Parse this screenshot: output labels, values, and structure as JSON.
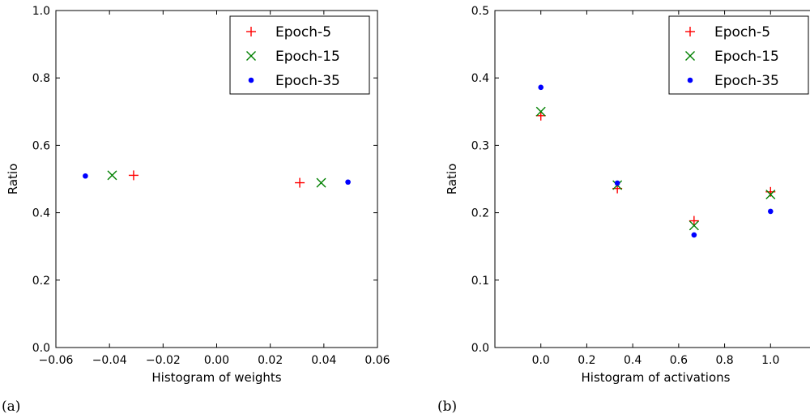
{
  "chart_data": [
    {
      "type": "scatter",
      "caption": "(a)",
      "xlabel": "Histogram of weights",
      "ylabel": "Ratio",
      "xlim": [
        -0.06,
        0.06
      ],
      "ylim": [
        0.0,
        1.0
      ],
      "xticks": [
        -0.06,
        -0.04,
        -0.02,
        0.0,
        0.02,
        0.04,
        0.06
      ],
      "xtick_labels": [
        "−0.06",
        "−0.04",
        "−0.02",
        "0.00",
        "0.02",
        "0.04",
        "0.06"
      ],
      "yticks": [
        0.0,
        0.2,
        0.4,
        0.6,
        0.8,
        1.0
      ],
      "ytick_labels": [
        "0.0",
        "0.2",
        "0.4",
        "0.6",
        "0.8",
        "1.0"
      ],
      "legend_position": "top-right",
      "series": [
        {
          "name": "Epoch-5",
          "marker": "plus",
          "color": "#ff0000",
          "points": [
            {
              "x": -0.031,
              "y": 0.511
            },
            {
              "x": 0.031,
              "y": 0.489
            }
          ]
        },
        {
          "name": "Epoch-15",
          "marker": "x",
          "color": "#008000",
          "points": [
            {
              "x": -0.039,
              "y": 0.511
            },
            {
              "x": 0.039,
              "y": 0.489
            }
          ]
        },
        {
          "name": "Epoch-35",
          "marker": "dot",
          "color": "#0000ff",
          "points": [
            {
              "x": -0.049,
              "y": 0.509
            },
            {
              "x": 0.049,
              "y": 0.491
            }
          ]
        }
      ]
    },
    {
      "type": "scatter",
      "caption": "(b)",
      "xlabel": "Histogram of activations",
      "ylabel": "Ratio",
      "xlim": [
        -0.2,
        1.2
      ],
      "ylim": [
        0.0,
        0.5
      ],
      "xticks": [
        0.0,
        0.2,
        0.4,
        0.6,
        0.8,
        1.0
      ],
      "xtick_labels": [
        "0.0",
        "0.2",
        "0.4",
        "0.6",
        "0.8",
        "1.0"
      ],
      "yticks": [
        0.0,
        0.1,
        0.2,
        0.3,
        0.4,
        0.5
      ],
      "ytick_labels": [
        "0.0",
        "0.1",
        "0.2",
        "0.3",
        "0.4",
        "0.5"
      ],
      "legend_position": "top-right",
      "series": [
        {
          "name": "Epoch-5",
          "marker": "plus",
          "color": "#ff0000",
          "points": [
            {
              "x": 0.0,
              "y": 0.344
            },
            {
              "x": 0.333,
              "y": 0.236
            },
            {
              "x": 0.667,
              "y": 0.188
            },
            {
              "x": 1.0,
              "y": 0.231
            }
          ]
        },
        {
          "name": "Epoch-15",
          "marker": "x",
          "color": "#008000",
          "points": [
            {
              "x": 0.0,
              "y": 0.35
            },
            {
              "x": 0.333,
              "y": 0.241
            },
            {
              "x": 0.667,
              "y": 0.181
            },
            {
              "x": 1.0,
              "y": 0.227
            }
          ]
        },
        {
          "name": "Epoch-35",
          "marker": "dot",
          "color": "#0000ff",
          "points": [
            {
              "x": 0.0,
              "y": 0.386
            },
            {
              "x": 0.333,
              "y": 0.244
            },
            {
              "x": 0.667,
              "y": 0.167
            },
            {
              "x": 1.0,
              "y": 0.202
            }
          ]
        }
      ]
    }
  ]
}
